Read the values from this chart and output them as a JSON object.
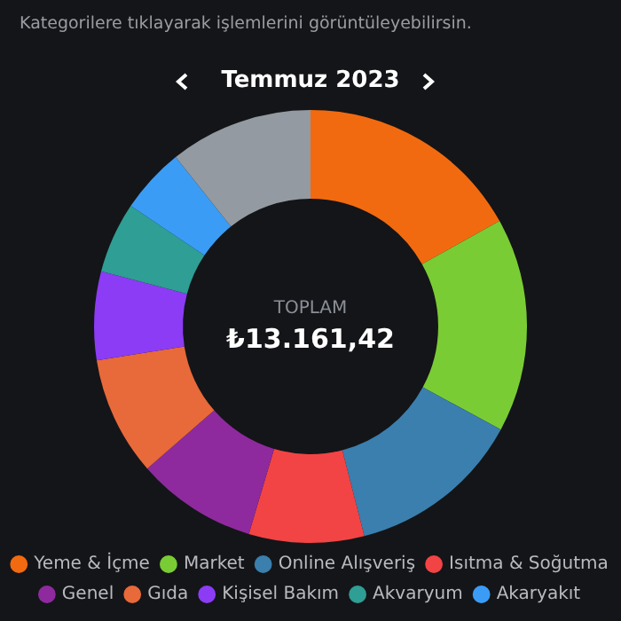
{
  "chart_data": {
    "type": "donut",
    "title": "Temmuz 2023",
    "subtitle": "Kategorilere tıklayarak işlemlerini görüntüleyebilirsin.",
    "categories": [
      "Yeme & İçme",
      "Market",
      "Online Alışveriş",
      "Isıtma & Soğutma",
      "Genel",
      "Gıda",
      "Kişisel Bakım",
      "Akvaryum",
      "Akaryakıt",
      null
    ],
    "values": [
      16.9,
      16.0,
      13.1,
      8.6,
      9.0,
      8.9,
      6.6,
      5.3,
      4.9,
      10.7
    ],
    "colors": [
      "#f26a10",
      "#7acc35",
      "#3a7fae",
      "#f24444",
      "#8e2a9e",
      "#e8693a",
      "#8c3cf5",
      "#2f9e94",
      "#3b9cf5",
      "#939aa1"
    ],
    "annotations": [
      "TOPLAM",
      "₺13.161,42"
    ],
    "legend": "bottom"
  }
}
